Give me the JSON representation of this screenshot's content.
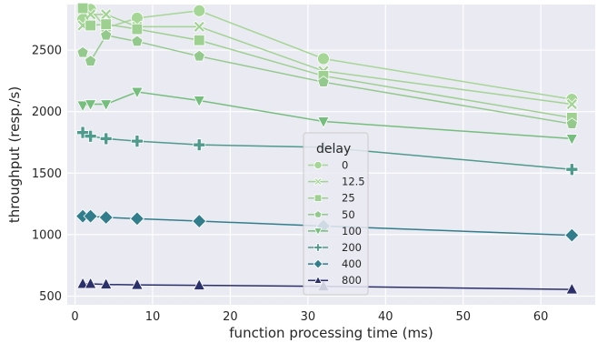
{
  "chart_data": {
    "type": "line",
    "xlabel": "function processing time (ms)",
    "ylabel": "throughput (resp./s)",
    "xlim": [
      -1,
      67
    ],
    "ylim": [
      430,
      2870
    ],
    "xticks": [
      0,
      10,
      20,
      30,
      40,
      50,
      60
    ],
    "yticks": [
      500,
      1000,
      1500,
      2000,
      2500
    ],
    "grid": true,
    "legend": {
      "title": "delay",
      "position": "center"
    },
    "x": [
      1,
      2,
      4,
      8,
      16,
      32,
      64
    ],
    "series": [
      {
        "name": "0",
        "marker": "circle",
        "color": "#a6d696",
        "values": [
          2750,
          2830,
          2680,
          2760,
          2820,
          2430,
          2100
        ]
      },
      {
        "name": "12.5",
        "marker": "x",
        "color": "#a2d394",
        "values": [
          2700,
          2790,
          2790,
          2690,
          2690,
          2330,
          2060
        ]
      },
      {
        "name": "25",
        "marker": "square",
        "color": "#9ed092",
        "values": [
          2840,
          2700,
          2710,
          2670,
          2580,
          2290,
          1950
        ]
      },
      {
        "name": "50",
        "marker": "pentagon",
        "color": "#93c98c",
        "values": [
          2480,
          2410,
          2620,
          2570,
          2450,
          2240,
          1900
        ]
      },
      {
        "name": "100",
        "marker": "triangle-down",
        "color": "#76be7e",
        "values": [
          2050,
          2060,
          2060,
          2160,
          2090,
          1920,
          1780
        ]
      },
      {
        "name": "200",
        "marker": "plus",
        "color": "#4e9a8c",
        "values": [
          1830,
          1800,
          1780,
          1760,
          1730,
          1710,
          1530
        ]
      },
      {
        "name": "400",
        "marker": "diamond",
        "color": "#327d8c",
        "values": [
          1150,
          1150,
          1140,
          1130,
          1110,
          1070,
          995
        ]
      },
      {
        "name": "800",
        "marker": "triangle-up",
        "color": "#2b2f6a",
        "values": [
          600,
          600,
          595,
          592,
          588,
          580,
          555
        ]
      }
    ]
  }
}
